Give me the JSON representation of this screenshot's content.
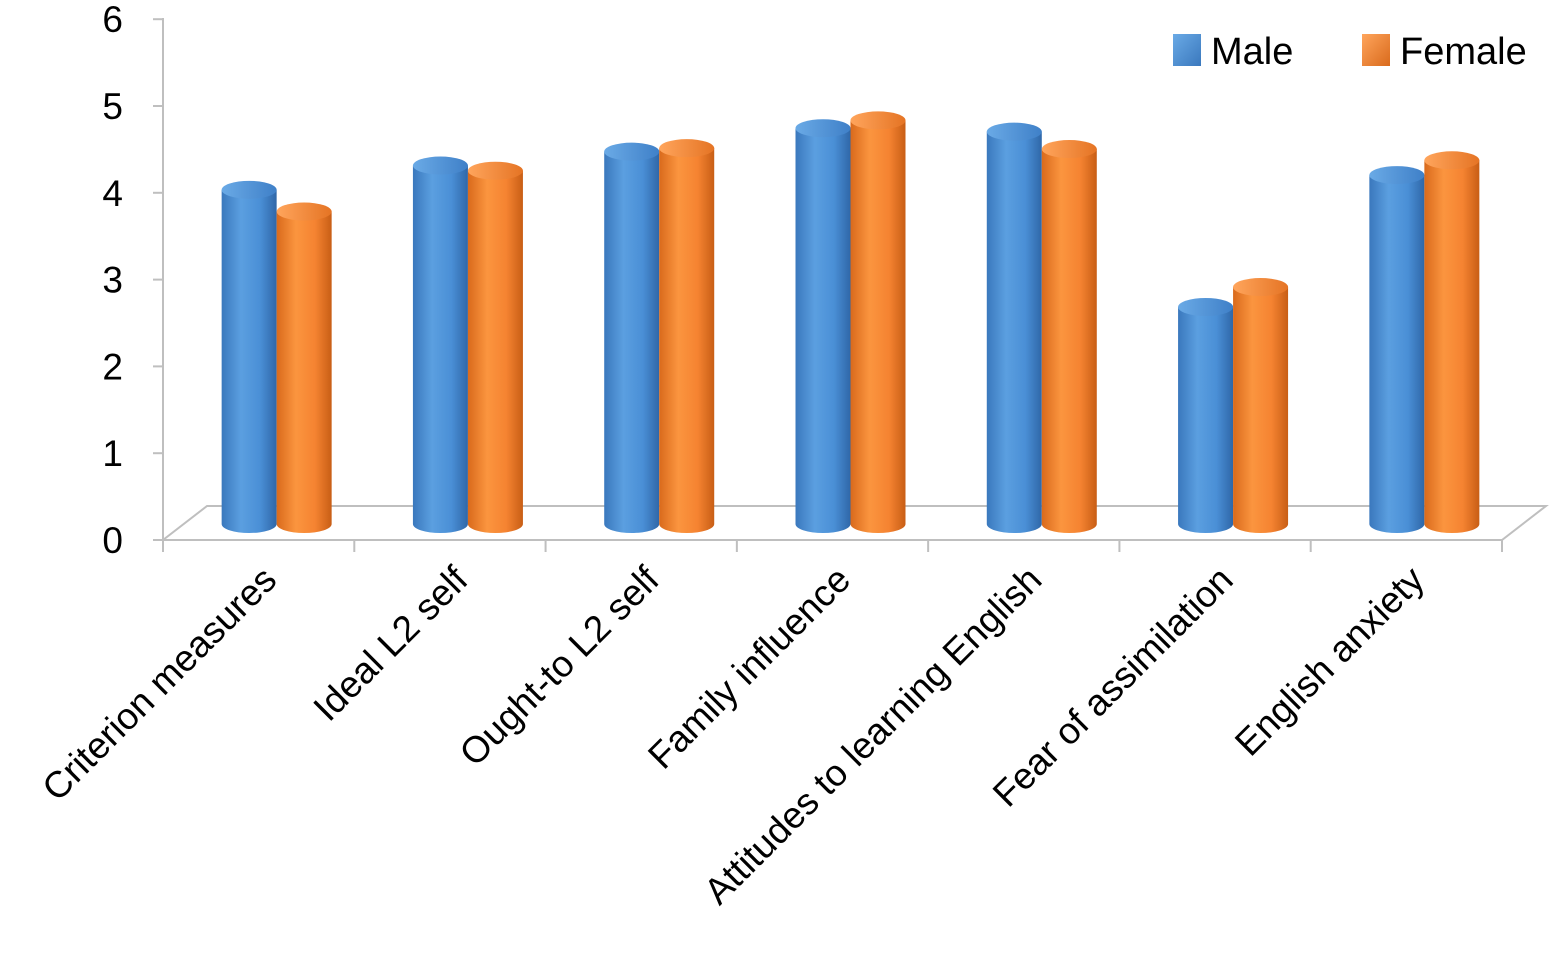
{
  "chart_data": {
    "type": "bar",
    "style": "3d-cylinder",
    "categories": [
      "Criterion measures",
      "Ideal L2 self",
      "Ought-to L2 self",
      "Family influence",
      "Attitudes to learning English",
      "Fear of assimilation",
      "English anxiety"
    ],
    "series": [
      {
        "name": "Male",
        "color": "#4a8fd6",
        "values": [
          3.85,
          4.13,
          4.29,
          4.56,
          4.52,
          2.5,
          4.02
        ]
      },
      {
        "name": "Female",
        "color": "#f58331",
        "values": [
          3.6,
          4.07,
          4.33,
          4.65,
          4.32,
          2.73,
          4.19
        ]
      }
    ],
    "ylim": [
      0,
      6
    ],
    "yticks": [
      "0",
      "1",
      "2",
      "3",
      "4",
      "5",
      "6"
    ],
    "legend_position": "top-right",
    "grid": false
  }
}
